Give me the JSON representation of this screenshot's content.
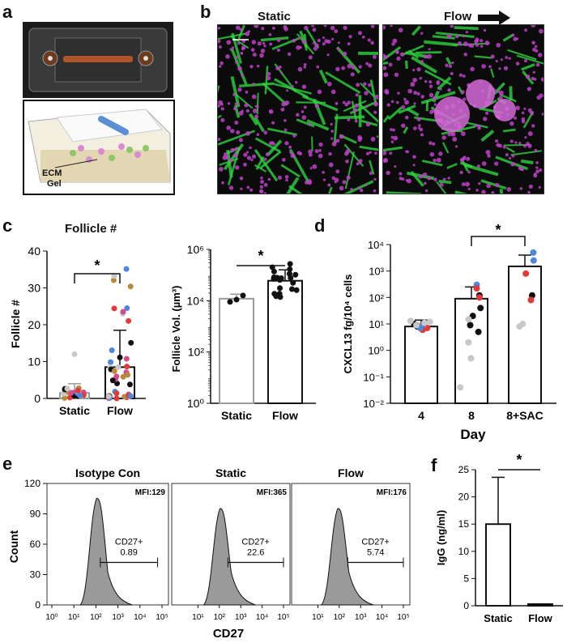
{
  "figure": {
    "panel_labels": {
      "a": "a",
      "b": "b",
      "c": "c",
      "d": "d",
      "e": "e",
      "f": "f"
    },
    "a": {
      "ecm_label_1": "ECM",
      "ecm_label_2": "Gel"
    },
    "b": {
      "static_title": "Static",
      "flow_title": "Flow",
      "flow_arrow_icon": "right-arrow-icon",
      "colors": {
        "cells": "#c040c8",
        "fibers": "#2fd23f",
        "background": "#0b0b0b"
      }
    },
    "c_left": {
      "title": "Follicle #",
      "significance": "*"
    },
    "c_right": {
      "significance": "*"
    },
    "d": {
      "significance": "*"
    },
    "e": {
      "xlabel": "CD27",
      "ylabel": "Count",
      "panels": [
        {
          "title": "Isotype Con",
          "mfi": "MFI:129",
          "gate_label": "CD27+",
          "gate_value": "0.89"
        },
        {
          "title": "Static",
          "mfi": "MFI:365",
          "gate_label": "CD27+",
          "gate_value": "22.6"
        },
        {
          "title": "Flow",
          "mfi": "MFI:176",
          "gate_label": "CD27+",
          "gate_value": "5.74"
        }
      ]
    },
    "f": {
      "significance": "*"
    }
  },
  "chart_data": [
    {
      "id": "c-left",
      "type": "bar",
      "title": "Follicle #",
      "xlabel": "",
      "ylabel": "Follicle #",
      "categories": [
        "Static",
        "Flow"
      ],
      "values": [
        1.5,
        8.5
      ],
      "error": [
        2.5,
        10
      ],
      "ylim": [
        0,
        40
      ],
      "yticks": [
        0,
        10,
        20,
        30,
        40
      ],
      "grid": false,
      "bar_outline_colors": [
        "#9a9a9a",
        "#111111"
      ]
    },
    {
      "id": "c-right",
      "type": "bar",
      "xlabel": "",
      "ylabel": "Follicle Vol. (µm³)",
      "scale": "log",
      "categories": [
        "Static",
        "Flow"
      ],
      "values": [
        12000,
        60000
      ],
      "ylim": [
        1,
        1000000
      ],
      "ytick_labels": [
        "10⁰",
        "10²",
        "10⁴",
        "10⁶"
      ],
      "bar_outline_colors": [
        "#9a9a9a",
        "#111111"
      ]
    },
    {
      "id": "d",
      "type": "bar",
      "xlabel": "Day",
      "ylabel": "CXCL13 fg/10⁴ cells",
      "scale": "log",
      "categories": [
        "4",
        "8",
        "8+SAC"
      ],
      "values": [
        8,
        90,
        1500
      ],
      "ylim": [
        0.01,
        10000
      ],
      "ytick_labels": [
        "10⁻²",
        "10⁻¹",
        "10⁰",
        "10¹",
        "10²",
        "10³",
        "10⁴"
      ],
      "point_colors": [
        "#e23a3a",
        "#4f86d9",
        "#111111",
        "#c8c8c8"
      ]
    },
    {
      "id": "f",
      "type": "bar",
      "xlabel": "",
      "ylabel": "IgG (ng/ml)",
      "categories": [
        "Static",
        "Flow"
      ],
      "values": [
        15,
        0.3
      ],
      "error": [
        8.6,
        0
      ],
      "ylim": [
        0,
        25
      ],
      "yticks": [
        0,
        5,
        10,
        15,
        20,
        25
      ]
    },
    {
      "id": "e",
      "type": "area",
      "xlabel": "CD27",
      "ylabel": "Count",
      "x_tick_labels": [
        "10⁰",
        "10¹",
        "10²",
        "10³",
        "10⁴",
        "10⁵"
      ],
      "y_ticks": [
        0,
        30,
        60,
        90,
        120
      ],
      "ylim": [
        0,
        120
      ],
      "series": [
        {
          "peak_x_log": 2.1,
          "peak_count": 105,
          "gate_from_log": 2.2,
          "gate_to_log": 4.8
        },
        {
          "peak_x_log": 2.1,
          "peak_count": 95,
          "gate_from_log": 2.4,
          "gate_to_log": 5.0
        },
        {
          "peak_x_log": 2.0,
          "peak_count": 95,
          "gate_from_log": 2.4,
          "gate_to_log": 5.0
        }
      ]
    }
  ]
}
